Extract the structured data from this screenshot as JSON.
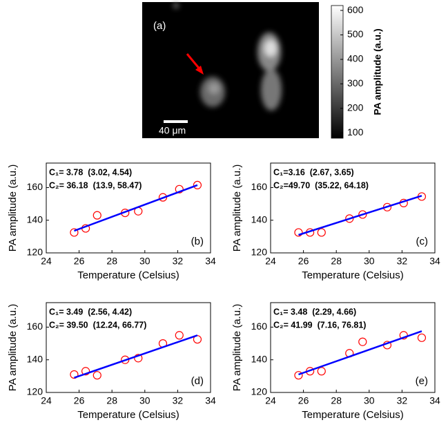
{
  "chart_data": [
    {
      "type": "image",
      "panel_label": "(a)",
      "scale_bar_label": "40 μm",
      "colorbar": {
        "label": "PA amplitude (a.u.)",
        "ylim": [
          78,
          620
        ],
        "yticks": [
          100,
          200,
          300,
          400,
          500,
          600
        ]
      }
    },
    {
      "type": "scatter",
      "panel_label": "(b)",
      "xlabel": "Temperature (Celsius)",
      "ylabel": "PA amplitude (a.u.)",
      "annotations": [
        "C₁= 3.78  (3.02, 4.54)",
        "C₂= 36.18  (13.9, 58.47)"
      ],
      "x": [
        25.7,
        26.4,
        27.1,
        28.8,
        29.6,
        31.1,
        32.1,
        33.2
      ],
      "series": [
        {
          "color": "#ff0000",
          "values": [
            132.5,
            135,
            143,
            144.5,
            145.5,
            154,
            159,
            161.5
          ]
        },
        {
          "color": "#0000ff",
          "x": [
            25.7,
            33.2
          ],
          "values": [
            133.5,
            161.5
          ]
        }
      ],
      "xlim": [
        24,
        34
      ],
      "xticks": [
        24,
        26,
        28,
        30,
        32,
        34
      ],
      "ylim": [
        120,
        175
      ],
      "yticks": [
        120,
        140,
        160
      ]
    },
    {
      "type": "scatter",
      "panel_label": "(c)",
      "xlabel": "Temperature (Celsius)",
      "ylabel": "PA amplitude (a.u.)",
      "annotations": [
        "C₁=3.16  (2.67, 3.65)",
        "C₂=49.70  (35.22, 64.18)"
      ],
      "x": [
        25.7,
        26.4,
        27.1,
        28.8,
        29.6,
        31.1,
        32.1,
        33.2
      ],
      "series": [
        {
          "color": "#ff0000",
          "values": [
            132.5,
            132.5,
            132.5,
            141,
            143.5,
            148,
            150.5,
            154.5
          ]
        },
        {
          "color": "#0000ff",
          "x": [
            25.7,
            33.2
          ],
          "values": [
            131,
            155
          ]
        }
      ],
      "xlim": [
        24,
        34
      ],
      "xticks": [
        24,
        26,
        28,
        30,
        32,
        34
      ],
      "ylim": [
        120,
        175
      ],
      "yticks": [
        120,
        140,
        160
      ]
    },
    {
      "type": "scatter",
      "panel_label": "(d)",
      "xlabel": "Temperature (Celsius)",
      "ylabel": "PA amplitude (a.u.)",
      "annotations": [
        "C₁= 3.49  (2.56, 4.42)",
        "C₂= 39.50  (12.24, 66.77)"
      ],
      "x": [
        25.7,
        26.4,
        27.1,
        28.8,
        29.6,
        31.1,
        32.1,
        33.2
      ],
      "series": [
        {
          "color": "#ff0000",
          "values": [
            131,
            133,
            130.5,
            140,
            141,
            150,
            155,
            152.5
          ]
        },
        {
          "color": "#0000ff",
          "x": [
            25.7,
            33.2
          ],
          "values": [
            129,
            155
          ]
        }
      ],
      "xlim": [
        24,
        34
      ],
      "xticks": [
        24,
        26,
        28,
        30,
        32,
        34
      ],
      "ylim": [
        120,
        175
      ],
      "yticks": [
        120,
        140,
        160
      ]
    },
    {
      "type": "scatter",
      "panel_label": "(e)",
      "xlabel": "Temperature (Celsius)",
      "ylabel": "PA amplitude (a.u.)",
      "annotations": [
        "C₁= 3.48  (2.29, 4.66)",
        "C₂= 41.99  (7.16, 76.81)"
      ],
      "x": [
        25.7,
        26.4,
        27.1,
        28.8,
        29.6,
        31.1,
        32.1,
        33.2
      ],
      "series": [
        {
          "color": "#ff0000",
          "values": [
            130.5,
            133,
            133,
            144,
            151,
            149,
            155,
            153.5
          ]
        },
        {
          "color": "#0000ff",
          "x": [
            25.7,
            33.2
          ],
          "values": [
            131,
            157.5
          ]
        }
      ],
      "xlim": [
        24,
        34
      ],
      "xticks": [
        24,
        26,
        28,
        30,
        32,
        34
      ],
      "ylim": [
        120,
        175
      ],
      "yticks": [
        120,
        140,
        160
      ]
    }
  ]
}
